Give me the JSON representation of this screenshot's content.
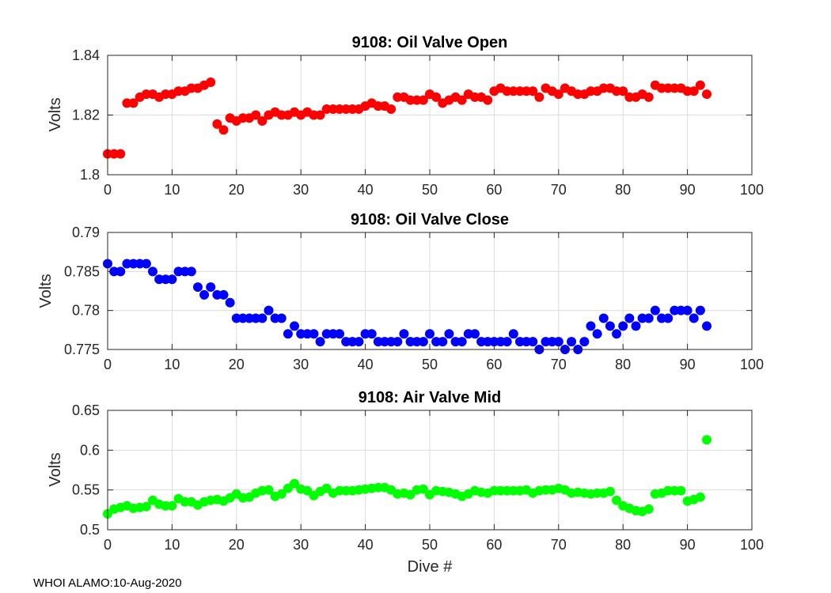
{
  "figure": {
    "footer": "WHOI ALAMO:10-Aug-2020",
    "xlabel": "Dive #"
  },
  "chart_data": [
    {
      "type": "scatter",
      "title": "9108: Oil Valve Open",
      "ylabel": "Volts",
      "xlim": [
        0,
        100
      ],
      "ylim": [
        1.8,
        1.84
      ],
      "xticks": [
        0,
        10,
        20,
        30,
        40,
        50,
        60,
        70,
        80,
        90,
        100
      ],
      "xtick_labels": [
        "0",
        "10",
        "20",
        "30",
        "40",
        "50",
        "60",
        "70",
        "80",
        "90",
        "100"
      ],
      "yticks": [
        1.8,
        1.82,
        1.84
      ],
      "ytick_labels": [
        "1.8",
        "1.82",
        "1.84"
      ],
      "grid": true,
      "color": "#ff0000",
      "x": [
        0,
        1,
        2,
        3,
        4,
        5,
        6,
        7,
        8,
        9,
        10,
        11,
        12,
        13,
        14,
        15,
        16,
        17,
        18,
        19,
        20,
        21,
        22,
        23,
        24,
        25,
        26,
        27,
        28,
        29,
        30,
        31,
        32,
        33,
        34,
        35,
        36,
        37,
        38,
        39,
        40,
        41,
        42,
        43,
        44,
        45,
        46,
        47,
        48,
        49,
        50,
        51,
        52,
        53,
        54,
        55,
        56,
        57,
        58,
        59,
        60,
        61,
        62,
        63,
        64,
        65,
        66,
        67,
        68,
        69,
        70,
        71,
        72,
        73,
        74,
        75,
        76,
        77,
        78,
        79,
        80,
        81,
        82,
        83,
        84,
        85,
        86,
        87,
        88,
        89,
        90,
        91,
        92,
        93
      ],
      "y": [
        1.807,
        1.807,
        1.807,
        1.824,
        1.824,
        1.826,
        1.827,
        1.827,
        1.826,
        1.827,
        1.827,
        1.828,
        1.828,
        1.829,
        1.829,
        1.83,
        1.831,
        1.817,
        1.815,
        1.819,
        1.818,
        1.819,
        1.819,
        1.82,
        1.818,
        1.82,
        1.821,
        1.82,
        1.82,
        1.821,
        1.82,
        1.821,
        1.82,
        1.82,
        1.822,
        1.822,
        1.822,
        1.822,
        1.822,
        1.822,
        1.823,
        1.824,
        1.823,
        1.823,
        1.822,
        1.826,
        1.826,
        1.825,
        1.825,
        1.825,
        1.827,
        1.826,
        1.824,
        1.825,
        1.826,
        1.825,
        1.827,
        1.826,
        1.826,
        1.825,
        1.828,
        1.829,
        1.828,
        1.828,
        1.828,
        1.828,
        1.828,
        1.826,
        1.829,
        1.828,
        1.827,
        1.829,
        1.828,
        1.827,
        1.827,
        1.828,
        1.828,
        1.829,
        1.829,
        1.828,
        1.828,
        1.826,
        1.826,
        1.827,
        1.826,
        1.83,
        1.829,
        1.829,
        1.829,
        1.829,
        1.828,
        1.828,
        1.83,
        1.827
      ]
    },
    {
      "type": "scatter",
      "title": "9108: Oil Valve Close",
      "ylabel": "Volts",
      "xlim": [
        0,
        100
      ],
      "ylim": [
        0.775,
        0.79
      ],
      "xticks": [
        0,
        10,
        20,
        30,
        40,
        50,
        60,
        70,
        80,
        90,
        100
      ],
      "xtick_labels": [
        "0",
        "10",
        "20",
        "30",
        "40",
        "50",
        "60",
        "70",
        "80",
        "90",
        "100"
      ],
      "yticks": [
        0.775,
        0.78,
        0.785,
        0.79
      ],
      "ytick_labels": [
        "0.775",
        "0.78",
        "0.785",
        "0.79"
      ],
      "grid": true,
      "color": "#0000ff",
      "x": [
        0,
        1,
        2,
        3,
        4,
        5,
        6,
        7,
        8,
        9,
        10,
        11,
        12,
        13,
        14,
        15,
        16,
        17,
        18,
        19,
        20,
        21,
        22,
        23,
        24,
        25,
        26,
        27,
        28,
        29,
        30,
        31,
        32,
        33,
        34,
        35,
        36,
        37,
        38,
        39,
        40,
        41,
        42,
        43,
        44,
        45,
        46,
        47,
        48,
        49,
        50,
        51,
        52,
        53,
        54,
        55,
        56,
        57,
        58,
        59,
        60,
        61,
        62,
        63,
        64,
        65,
        66,
        67,
        68,
        69,
        70,
        71,
        72,
        73,
        74,
        75,
        76,
        77,
        78,
        79,
        80,
        81,
        82,
        83,
        84,
        85,
        86,
        87,
        88,
        89,
        90,
        91,
        92,
        93
      ],
      "y": [
        0.786,
        0.785,
        0.785,
        0.786,
        0.786,
        0.786,
        0.786,
        0.785,
        0.784,
        0.784,
        0.784,
        0.785,
        0.785,
        0.785,
        0.783,
        0.782,
        0.783,
        0.782,
        0.782,
        0.781,
        0.779,
        0.779,
        0.779,
        0.779,
        0.779,
        0.78,
        0.779,
        0.779,
        0.777,
        0.778,
        0.777,
        0.777,
        0.777,
        0.776,
        0.777,
        0.777,
        0.777,
        0.776,
        0.776,
        0.776,
        0.777,
        0.777,
        0.776,
        0.776,
        0.776,
        0.776,
        0.777,
        0.776,
        0.776,
        0.776,
        0.777,
        0.776,
        0.776,
        0.777,
        0.776,
        0.776,
        0.777,
        0.777,
        0.776,
        0.776,
        0.776,
        0.776,
        0.776,
        0.777,
        0.776,
        0.776,
        0.776,
        0.775,
        0.776,
        0.776,
        0.776,
        0.775,
        0.776,
        0.775,
        0.776,
        0.778,
        0.777,
        0.779,
        0.778,
        0.777,
        0.778,
        0.779,
        0.778,
        0.779,
        0.779,
        0.78,
        0.779,
        0.779,
        0.78,
        0.78,
        0.78,
        0.779,
        0.78,
        0.778
      ]
    },
    {
      "type": "scatter",
      "title": "9108: Air Valve Mid",
      "ylabel": "Volts",
      "xlabel": "Dive #",
      "xlim": [
        0,
        100
      ],
      "ylim": [
        0.5,
        0.65
      ],
      "xticks": [
        0,
        10,
        20,
        30,
        40,
        50,
        60,
        70,
        80,
        90,
        100
      ],
      "xtick_labels": [
        "0",
        "10",
        "20",
        "30",
        "40",
        "50",
        "60",
        "70",
        "80",
        "90",
        "100"
      ],
      "yticks": [
        0.5,
        0.55,
        0.6,
        0.65
      ],
      "ytick_labels": [
        "0.5",
        "0.55",
        "0.6",
        "0.65"
      ],
      "grid": true,
      "color": "#00ff00",
      "x": [
        0,
        1,
        2,
        3,
        4,
        5,
        6,
        7,
        8,
        9,
        10,
        11,
        12,
        13,
        14,
        15,
        16,
        17,
        18,
        19,
        20,
        21,
        22,
        23,
        24,
        25,
        26,
        27,
        28,
        29,
        30,
        31,
        32,
        33,
        34,
        35,
        36,
        37,
        38,
        39,
        40,
        41,
        42,
        43,
        44,
        45,
        46,
        47,
        48,
        49,
        50,
        51,
        52,
        53,
        54,
        55,
        56,
        57,
        58,
        59,
        60,
        61,
        62,
        63,
        64,
        65,
        66,
        67,
        68,
        69,
        70,
        71,
        72,
        73,
        74,
        75,
        76,
        77,
        78,
        79,
        80,
        81,
        82,
        83,
        84,
        85,
        86,
        87,
        88,
        89,
        90,
        91,
        92,
        93
      ],
      "y": [
        0.52,
        0.526,
        0.528,
        0.53,
        0.527,
        0.528,
        0.529,
        0.537,
        0.532,
        0.53,
        0.53,
        0.539,
        0.535,
        0.535,
        0.531,
        0.535,
        0.537,
        0.538,
        0.536,
        0.54,
        0.545,
        0.54,
        0.541,
        0.546,
        0.549,
        0.55,
        0.542,
        0.545,
        0.552,
        0.558,
        0.551,
        0.549,
        0.543,
        0.548,
        0.552,
        0.546,
        0.549,
        0.549,
        0.549,
        0.55,
        0.551,
        0.552,
        0.553,
        0.553,
        0.55,
        0.545,
        0.546,
        0.544,
        0.55,
        0.551,
        0.544,
        0.549,
        0.548,
        0.547,
        0.545,
        0.542,
        0.545,
        0.549,
        0.547,
        0.546,
        0.549,
        0.549,
        0.549,
        0.549,
        0.549,
        0.55,
        0.546,
        0.549,
        0.55,
        0.55,
        0.552,
        0.55,
        0.546,
        0.547,
        0.546,
        0.545,
        0.546,
        0.546,
        0.548,
        0.537,
        0.53,
        0.527,
        0.524,
        0.523,
        0.526,
        0.545,
        0.546,
        0.549,
        0.549,
        0.549,
        0.536,
        0.538,
        0.541,
        0.613
      ]
    }
  ]
}
